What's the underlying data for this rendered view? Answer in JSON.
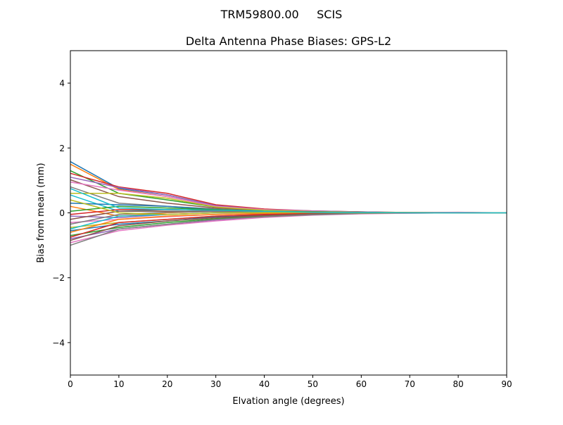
{
  "chart_data": {
    "type": "line",
    "suptitle": "TRM59800.00     SCIS",
    "title": "Delta Antenna Phase Biases: GPS-L2",
    "xlabel": "Elvation angle (degrees)",
    "ylabel": "Bias from mean (mm)",
    "xlim": [
      0,
      90
    ],
    "ylim": [
      -5,
      5
    ],
    "xticks": [
      0,
      10,
      20,
      30,
      40,
      50,
      60,
      70,
      80,
      90
    ],
    "yticks": [
      -4,
      -2,
      0,
      2,
      4
    ],
    "ytick_labels": [
      "−4",
      "−2",
      "0",
      "2",
      "4"
    ],
    "grid": false,
    "legend": "none",
    "colors": [
      "#1f77b4",
      "#ff7f0e",
      "#2ca02c",
      "#d62728",
      "#9467bd",
      "#8c564b",
      "#e377c2",
      "#7f7f7f",
      "#bcbd22",
      "#17becf"
    ],
    "x": [
      0,
      10,
      20,
      30,
      40,
      50,
      60,
      70,
      80,
      90
    ],
    "series": [
      {
        "values": [
          1.58,
          0.75,
          0.55,
          0.22,
          0.1,
          0.05,
          0.03,
          0.0,
          0.0,
          0
        ]
      },
      {
        "values": [
          1.5,
          0.72,
          0.5,
          0.2,
          0.1,
          0.05,
          0.02,
          0,
          0.01,
          0
        ]
      },
      {
        "values": [
          1.3,
          0.6,
          0.4,
          0.18,
          0.08,
          0.05,
          0.02,
          0,
          0,
          0
        ]
      },
      {
        "values": [
          1.22,
          0.8,
          0.6,
          0.25,
          0.12,
          0.06,
          0.03,
          0.01,
          0.01,
          0
        ]
      },
      {
        "values": [
          1.1,
          0.78,
          0.55,
          0.22,
          0.1,
          0.06,
          0.03,
          0.01,
          0,
          0
        ]
      },
      {
        "values": [
          1.02,
          0.5,
          0.3,
          0.15,
          0.08,
          0.04,
          0.02,
          0,
          0,
          0
        ]
      },
      {
        "values": [
          0.95,
          0.7,
          0.5,
          0.2,
          0.1,
          0.05,
          0.02,
          0,
          0.02,
          0
        ]
      },
      {
        "values": [
          0.8,
          0.3,
          0.2,
          0.12,
          0.06,
          0.03,
          0.01,
          0,
          0,
          0
        ]
      },
      {
        "values": [
          0.6,
          0.6,
          0.45,
          0.18,
          0.08,
          0.04,
          0.02,
          0.01,
          0,
          0
        ]
      },
      {
        "values": [
          0.55,
          0.05,
          0.1,
          0.08,
          0.04,
          0.02,
          0.01,
          0,
          0,
          0
        ]
      },
      {
        "values": [
          0.3,
          0.25,
          0.2,
          0.1,
          0.05,
          0.02,
          0,
          0,
          0,
          0
        ]
      },
      {
        "values": [
          0.2,
          -0.1,
          0.0,
          0.05,
          0.03,
          0.02,
          0.01,
          0,
          0,
          0
        ]
      },
      {
        "values": [
          0.05,
          0.2,
          0.15,
          0.1,
          0.05,
          0.03,
          0.01,
          0,
          0,
          0
        ]
      },
      {
        "values": [
          -0.05,
          0.1,
          0.1,
          0.08,
          0.04,
          0.02,
          0.01,
          0,
          0,
          0
        ]
      },
      {
        "values": [
          -0.1,
          -0.15,
          -0.05,
          0.0,
          0.01,
          0.01,
          0,
          0,
          0,
          0
        ]
      },
      {
        "values": [
          -0.2,
          0.05,
          0.05,
          0.05,
          0.03,
          0.02,
          0.01,
          0,
          0,
          0
        ]
      },
      {
        "values": [
          -0.3,
          -0.2,
          -0.12,
          -0.05,
          -0.02,
          0,
          0,
          0,
          0,
          0
        ]
      },
      {
        "values": [
          -0.35,
          -0.05,
          0.02,
          0.04,
          0.02,
          0.01,
          0,
          0,
          0,
          0
        ]
      },
      {
        "values": [
          -0.45,
          -0.3,
          -0.2,
          -0.1,
          -0.05,
          -0.02,
          0,
          0,
          0,
          0
        ]
      },
      {
        "values": [
          -0.5,
          -0.1,
          -0.05,
          0,
          0.01,
          0.01,
          0,
          0,
          0,
          0
        ]
      },
      {
        "values": [
          -0.55,
          -0.35,
          -0.25,
          -0.12,
          -0.06,
          -0.02,
          -0.01,
          0,
          0,
          0
        ]
      },
      {
        "values": [
          -0.6,
          -0.2,
          -0.1,
          -0.05,
          -0.02,
          0,
          0,
          0,
          0,
          0
        ]
      },
      {
        "values": [
          -0.7,
          -0.45,
          -0.3,
          -0.18,
          -0.1,
          -0.04,
          -0.02,
          0,
          0,
          0
        ]
      },
      {
        "values": [
          -0.75,
          -0.3,
          -0.2,
          -0.1,
          -0.05,
          -0.02,
          0,
          0,
          0,
          0
        ]
      },
      {
        "values": [
          -0.8,
          -0.5,
          -0.35,
          -0.22,
          -0.12,
          -0.06,
          -0.02,
          -0.01,
          0,
          0
        ]
      },
      {
        "values": [
          -0.85,
          -0.4,
          -0.25,
          -0.15,
          -0.08,
          -0.03,
          -0.01,
          0,
          0,
          0
        ]
      },
      {
        "values": [
          -0.92,
          -0.55,
          -0.38,
          -0.25,
          -0.14,
          -0.07,
          -0.03,
          -0.01,
          0,
          0
        ]
      },
      {
        "values": [
          -1.0,
          -0.5,
          -0.35,
          -0.2,
          -0.12,
          -0.06,
          -0.02,
          0,
          0,
          0
        ]
      },
      {
        "values": [
          0.4,
          0.0,
          -0.05,
          0,
          0.01,
          0.01,
          0,
          0,
          0,
          0
        ]
      },
      {
        "values": [
          0.75,
          0.15,
          0.1,
          0.08,
          0.05,
          0.02,
          0.01,
          0,
          0,
          0
        ]
      }
    ]
  }
}
